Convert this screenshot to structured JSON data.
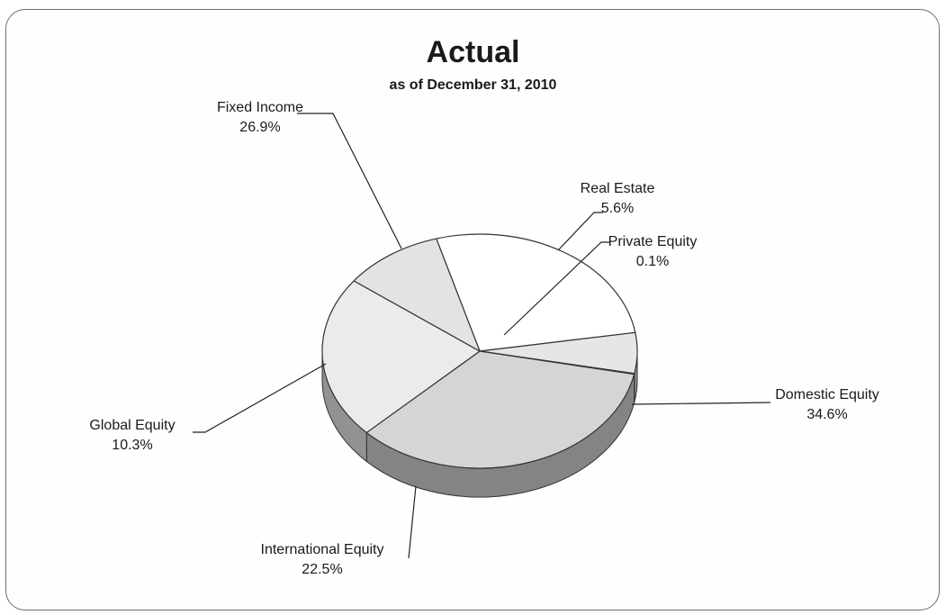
{
  "chart_data": {
    "type": "pie",
    "style": "3d",
    "title": "Actual",
    "subtitle": "as of December 31, 2010",
    "legend": "none",
    "slices": [
      {
        "name": "Fixed Income",
        "label": "26.9%",
        "value": 26.9,
        "color": "#ffffff"
      },
      {
        "name": "Real Estate",
        "label": "5.6%",
        "value": 5.6,
        "color": "#e6e6e6"
      },
      {
        "name": "Private Equity",
        "label": "0.1%",
        "value": 0.1,
        "color": "#bdbdbd"
      },
      {
        "name": "Domestic Equity",
        "label": "34.6%",
        "value": 34.6,
        "color": "#d5d5d5"
      },
      {
        "name": "International Equity",
        "label": "22.5%",
        "value": 22.5,
        "color": "#ebebeb"
      },
      {
        "name": "Global Equity",
        "label": "10.3%",
        "value": 10.3,
        "color": "#e3e3e3"
      }
    ]
  }
}
